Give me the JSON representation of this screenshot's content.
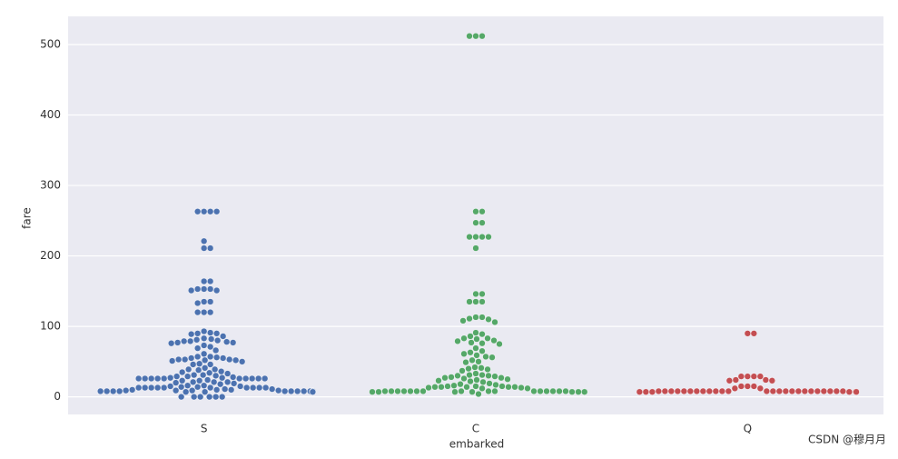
{
  "chart_data": {
    "type": "swarm",
    "xlabel": "embarked",
    "ylabel": "fare",
    "categories": [
      "S",
      "C",
      "Q"
    ],
    "colors": [
      "#4c72b0",
      "#55a868",
      "#c44e52"
    ],
    "values": [
      [
        263,
        263,
        263,
        263,
        221,
        211,
        211,
        164,
        164,
        153,
        153,
        153,
        151,
        151,
        135,
        135,
        133,
        120,
        120,
        120,
        93,
        91,
        90,
        90,
        89,
        86,
        83,
        82,
        81,
        80,
        79,
        79,
        78,
        77,
        77,
        76,
        73,
        71,
        69,
        66,
        61,
        57,
        57,
        56,
        55,
        55,
        53,
        53,
        53,
        52,
        52,
        51,
        50,
        47,
        46,
        46,
        41,
        39,
        39,
        38,
        36,
        35,
        34,
        33,
        31,
        31,
        30,
        29,
        29,
        28,
        27,
        27,
        26,
        26,
        26,
        26,
        26,
        26,
        26,
        26,
        26,
        26,
        24,
        23,
        23,
        21,
        21,
        21,
        20,
        19,
        18,
        16,
        16,
        15,
        15,
        14,
        14,
        13,
        13,
        13,
        13,
        13,
        13,
        13,
        13,
        13,
        13,
        11,
        11,
        10,
        10,
        10,
        9,
        9,
        9,
        9,
        8,
        8,
        8,
        8,
        8,
        8,
        8,
        8,
        8,
        8,
        8,
        8,
        8,
        8,
        8,
        8,
        8,
        8,
        8,
        8,
        7,
        7,
        7,
        7,
        7,
        7,
        7,
        7,
        7,
        7,
        7,
        7,
        7,
        7,
        7,
        7,
        7,
        0,
        0,
        0,
        0,
        0,
        0
      ],
      [
        512,
        512,
        512,
        263,
        263,
        247,
        247,
        227,
        227,
        227,
        227,
        211,
        146,
        146,
        135,
        135,
        135,
        113,
        113,
        111,
        110,
        108,
        106,
        91,
        89,
        86,
        83,
        83,
        82,
        80,
        79,
        77,
        76,
        75,
        69,
        65,
        63,
        61,
        59,
        57,
        56,
        52,
        50,
        49,
        42,
        41,
        40,
        39,
        37,
        33,
        31,
        31,
        30,
        30,
        29,
        28,
        27,
        27,
        26,
        25,
        24,
        23,
        22,
        21,
        19,
        18,
        17,
        16,
        15,
        15,
        15,
        14,
        14,
        14,
        14,
        14,
        13,
        13,
        12,
        12,
        8,
        8,
        8,
        8,
        8,
        8,
        8,
        8,
        8,
        8,
        8,
        8,
        8,
        8,
        8,
        8,
        7,
        7,
        7,
        7,
        7,
        7,
        7,
        7,
        7,
        7,
        7,
        7,
        4
      ],
      [
        90,
        90,
        29,
        29,
        29,
        29,
        24,
        24,
        23,
        23,
        15,
        15,
        15,
        12,
        12,
        8,
        8,
        8,
        8,
        8,
        8,
        8,
        8,
        8,
        8,
        8,
        8,
        8,
        8,
        8,
        8,
        8,
        8,
        8,
        8,
        8,
        8,
        8,
        8,
        8,
        7,
        7,
        7,
        7,
        7,
        7,
        7,
        7,
        7,
        7
      ]
    ],
    "ylim": [
      -25,
      540
    ],
    "yticks": [
      0,
      100,
      200,
      300,
      400,
      500
    ],
    "grid": true,
    "watermark": "CSDN @穆月月"
  }
}
